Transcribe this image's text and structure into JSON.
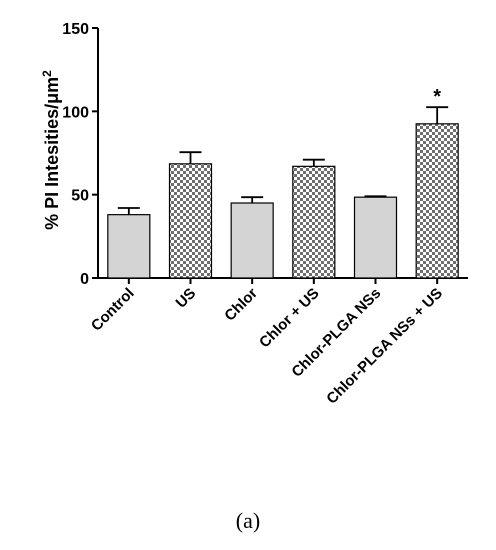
{
  "caption": "(a)",
  "chart_data": {
    "type": "bar",
    "ylabel": "% PI Intesities/μm²",
    "ylabel_main": "% PI Intesities/μm",
    "ylabel_sup": "2",
    "ylim": [
      0,
      150
    ],
    "yticks": [
      0,
      50,
      100,
      150
    ],
    "categories": [
      "Control",
      "US",
      "Chlor",
      "Chlor + US",
      "Chlor-PLGA NSs",
      "Chlor-PLGA NSs + US"
    ],
    "values": [
      38,
      68.5,
      45,
      67,
      48.5,
      92.5
    ],
    "errors": [
      4,
      7,
      3.5,
      4,
      0.5,
      10
    ],
    "patterns": [
      "solid",
      "checker",
      "solid",
      "checker",
      "solid",
      "checker"
    ],
    "significance": [
      "",
      "",
      "",
      "",
      "",
      "*"
    ],
    "colors": {
      "solid": "#d4d4d4",
      "checker_dark": "#6e6e6e",
      "checker_light": "#ffffff",
      "stroke": "#000000"
    }
  }
}
